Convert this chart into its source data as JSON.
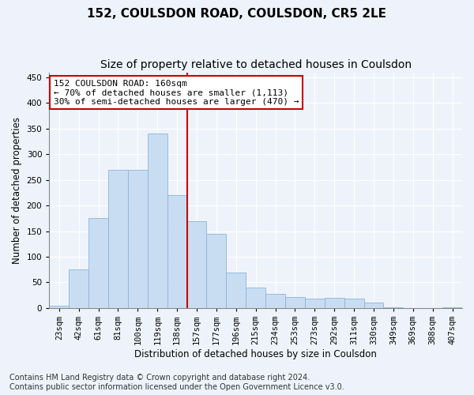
{
  "title": "152, COULSDON ROAD, COULSDON, CR5 2LE",
  "subtitle": "Size of property relative to detached houses in Coulsdon",
  "xlabel": "Distribution of detached houses by size in Coulsdon",
  "ylabel": "Number of detached properties",
  "bar_labels": [
    "23sqm",
    "42sqm",
    "61sqm",
    "81sqm",
    "100sqm",
    "119sqm",
    "138sqm",
    "157sqm",
    "177sqm",
    "196sqm",
    "215sqm",
    "234sqm",
    "253sqm",
    "273sqm",
    "292sqm",
    "311sqm",
    "330sqm",
    "349sqm",
    "369sqm",
    "388sqm",
    "407sqm"
  ],
  "bar_heights": [
    5,
    75,
    175,
    270,
    270,
    340,
    220,
    170,
    145,
    70,
    40,
    28,
    22,
    18,
    20,
    18,
    10,
    2,
    0,
    0,
    2
  ],
  "bar_color": "#c9ddf2",
  "bar_edgecolor": "#8ab4d8",
  "vline_index": 7,
  "vline_color": "#cc0000",
  "annotation_text": "152 COULSDON ROAD: 160sqm\n← 70% of detached houses are smaller (1,113)\n30% of semi-detached houses are larger (470) →",
  "annotation_box_edgecolor": "#cc0000",
  "ylim": [
    0,
    460
  ],
  "yticks": [
    0,
    50,
    100,
    150,
    200,
    250,
    300,
    350,
    400,
    450
  ],
  "bg_color": "#eef3fb",
  "grid_color": "#ffffff",
  "title_fontsize": 11,
  "subtitle_fontsize": 10,
  "axis_label_fontsize": 8.5,
  "tick_fontsize": 7.5,
  "annotation_fontsize": 8,
  "footer_fontsize": 7
}
